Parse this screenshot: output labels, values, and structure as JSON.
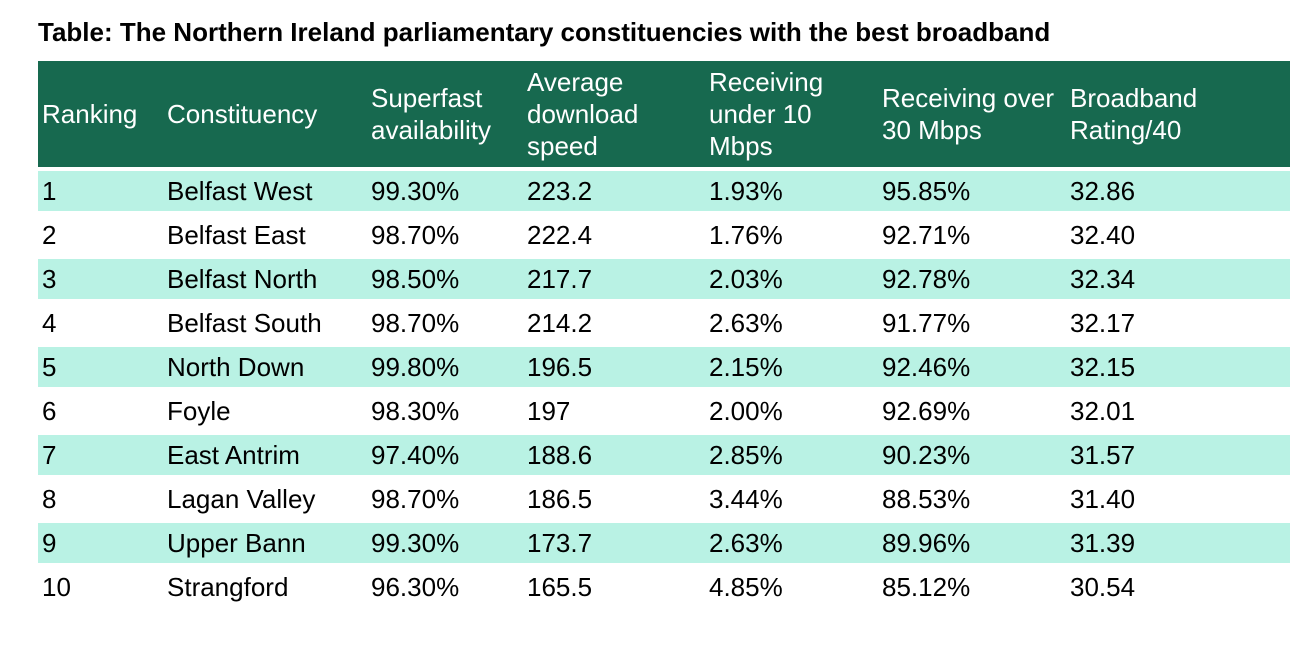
{
  "title": "Table: The Northern Ireland parliamentary constituencies with the best broadband",
  "colors": {
    "header_background": "#17694f",
    "header_text": "#ffffff",
    "alt_row_background": "#b9f2e4",
    "row_background": "#ffffff",
    "body_text": "#000000"
  },
  "chart_data": {
    "type": "table",
    "title": "Table: The Northern Ireland parliamentary constituencies with the best broadband",
    "columns": [
      "Ranking",
      "Constituency",
      "Superfast availability",
      "Average download speed",
      "Receiving under 10 Mbps",
      "Receiving over 30 Mbps",
      "Broadband Rating/40"
    ],
    "rows": [
      [
        "1",
        "Belfast West",
        "99.30%",
        "223.2",
        "1.93%",
        "95.85%",
        "32.86"
      ],
      [
        "2",
        "Belfast East",
        "98.70%",
        "222.4",
        "1.76%",
        "92.71%",
        "32.40"
      ],
      [
        "3",
        "Belfast North",
        "98.50%",
        "217.7",
        "2.03%",
        "92.78%",
        "32.34"
      ],
      [
        "4",
        "Belfast South",
        "98.70%",
        "214.2",
        "2.63%",
        "91.77%",
        "32.17"
      ],
      [
        "5",
        "North Down",
        "99.80%",
        "196.5",
        "2.15%",
        "92.46%",
        "32.15"
      ],
      [
        "6",
        "Foyle",
        "98.30%",
        "197",
        "2.00%",
        "92.69%",
        "32.01"
      ],
      [
        "7",
        "East Antrim",
        "97.40%",
        "188.6",
        "2.85%",
        "90.23%",
        "31.57"
      ],
      [
        "8",
        "Lagan Valley",
        "98.70%",
        "186.5",
        "3.44%",
        "88.53%",
        "31.40"
      ],
      [
        "9",
        "Upper Bann",
        "99.30%",
        "173.7",
        "2.63%",
        "89.96%",
        "31.39"
      ],
      [
        "10",
        "Strangford",
        "96.30%",
        "165.5",
        "4.85%",
        "85.12%",
        "30.54"
      ]
    ]
  }
}
